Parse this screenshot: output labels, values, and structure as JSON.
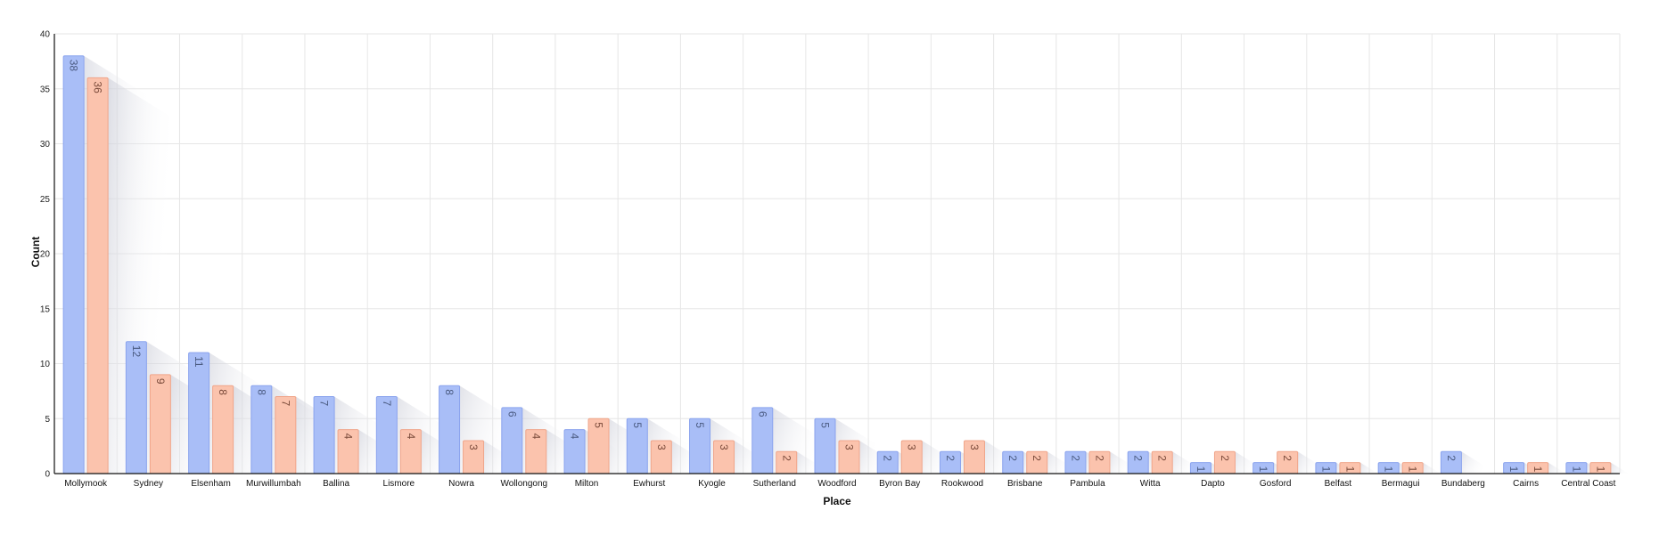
{
  "chart_data": {
    "type": "bar",
    "xlabel": "Place",
    "ylabel": "Count",
    "ylim": [
      0,
      40
    ],
    "yticks": [
      0,
      5,
      10,
      15,
      20,
      25,
      30,
      35,
      40
    ],
    "grid": true,
    "categories": [
      "Mollymook",
      "Sydney",
      "Elsenham",
      "Murwillumbah",
      "Ballina",
      "Lismore",
      "Nowra",
      "Wollongong",
      "Milton",
      "Ewhurst",
      "Kyogle",
      "Sutherland",
      "Woodford",
      "Byron Bay",
      "Rookwood",
      "Brisbane",
      "Pambula",
      "Witta",
      "Dapto",
      "Gosford",
      "Belfast",
      "Bermagui",
      "Bundaberg",
      "Cairns",
      "Central Coast"
    ],
    "series": [
      {
        "color": "#a9bef7",
        "stroke": "#8aa3ee",
        "labelColor": "#4a5a80",
        "values": [
          38,
          12,
          11,
          8,
          7,
          7,
          8,
          6,
          4,
          5,
          5,
          6,
          5,
          2,
          2,
          2,
          2,
          2,
          1,
          1,
          1,
          1,
          2,
          1,
          1
        ]
      },
      {
        "color": "#fbc3ad",
        "stroke": "#f0a58a",
        "labelColor": "#7a4a3a",
        "values": [
          36,
          9,
          8,
          7,
          4,
          4,
          3,
          4,
          5,
          3,
          3,
          2,
          3,
          3,
          3,
          2,
          2,
          2,
          2,
          2,
          1,
          1,
          null,
          1,
          1
        ]
      }
    ]
  }
}
